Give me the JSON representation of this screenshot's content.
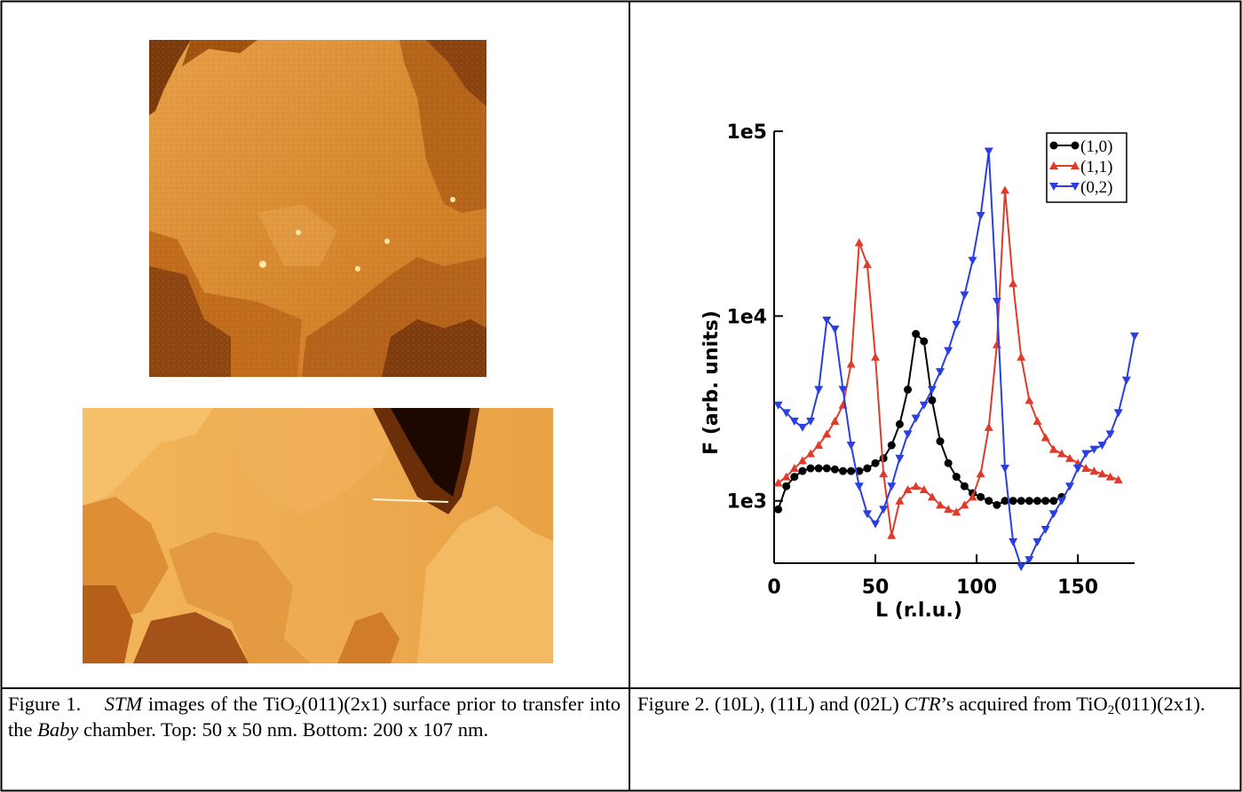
{
  "figure1_caption": [
    "Figure 1.",
    "STM",
    "images of the TiO",
    "2",
    "(011)(2x1) surface prior to transfer into the",
    "Baby",
    "chamber. Top: 50 x 50 nm. Bottom: 200 x 107 nm."
  ],
  "figure2_caption": [
    "Figure 2. (10L), (11L) and (02L)",
    "CTR",
    "’s acquired from TiO",
    "2",
    "(011)(2x1)."
  ],
  "chart_data": {
    "type": "line",
    "log_y": true,
    "xlabel": "L (r.l.u.)",
    "ylabel": "F (arb. units)",
    "xlim": [
      0,
      178
    ],
    "xticks": [
      0,
      50,
      100,
      150
    ],
    "ylim": [
      460,
      100000
    ],
    "yticks": [
      {
        "value": 1000,
        "label": "1e3"
      },
      {
        "value": 10000,
        "label": "1e4"
      },
      {
        "value": 100000,
        "label": "1e5"
      }
    ],
    "legend": "top-right",
    "series": [
      {
        "name": "(1,0)",
        "color": "#000000",
        "marker": "circle",
        "x": [
          2,
          6,
          10,
          14,
          18,
          22,
          26,
          30,
          34,
          38,
          42,
          46,
          50,
          54,
          58,
          62,
          66,
          70,
          74,
          78,
          82,
          86,
          90,
          94,
          98,
          102,
          106,
          110,
          114,
          118,
          122,
          126,
          130,
          134,
          138,
          142
        ],
        "values": [
          900,
          1200,
          1350,
          1450,
          1500,
          1500,
          1500,
          1480,
          1450,
          1450,
          1450,
          1500,
          1600,
          1700,
          2000,
          2600,
          4000,
          8000,
          7300,
          3500,
          2100,
          1600,
          1350,
          1200,
          1100,
          1050,
          1000,
          950,
          1000,
          1000,
          1000,
          1000,
          1000,
          1000,
          1000,
          1050
        ]
      },
      {
        "name": "(1,1)",
        "color": "#e03a2a",
        "marker": "triangle-up",
        "x": [
          2,
          6,
          10,
          14,
          18,
          22,
          26,
          30,
          34,
          38,
          42,
          46,
          50,
          54,
          58,
          62,
          66,
          70,
          74,
          78,
          82,
          86,
          90,
          94,
          98,
          102,
          106,
          110,
          114,
          118,
          122,
          126,
          130,
          134,
          138,
          142,
          146,
          150,
          154,
          158,
          162,
          166,
          170
        ],
        "values": [
          1250,
          1350,
          1500,
          1650,
          1800,
          2000,
          2300,
          2700,
          3300,
          5500,
          25000,
          19000,
          6000,
          1400,
          650,
          1000,
          1150,
          1200,
          1150,
          1050,
          950,
          900,
          870,
          950,
          1050,
          1400,
          2500,
          7000,
          48000,
          15000,
          6000,
          3500,
          2700,
          2200,
          1900,
          1800,
          1700,
          1600,
          1500,
          1450,
          1400,
          1350,
          1300
        ]
      },
      {
        "name": "(0,2)",
        "color": "#2a3fe0",
        "marker": "triangle-down",
        "x": [
          2,
          6,
          10,
          14,
          18,
          22,
          26,
          30,
          34,
          38,
          42,
          46,
          50,
          54,
          58,
          62,
          66,
          70,
          74,
          78,
          82,
          86,
          90,
          94,
          98,
          102,
          106,
          110,
          114,
          118,
          122,
          126,
          130,
          134,
          138,
          142,
          146,
          150,
          154,
          158,
          162,
          166,
          170,
          174,
          178
        ],
        "values": [
          3300,
          3000,
          2700,
          2500,
          2700,
          4000,
          9500,
          8500,
          4000,
          2000,
          1200,
          850,
          750,
          900,
          1200,
          1700,
          2300,
          2800,
          3300,
          4000,
          5000,
          6500,
          9000,
          13000,
          20000,
          35000,
          78000,
          12000,
          1500,
          600,
          440,
          480,
          600,
          700,
          850,
          1000,
          1200,
          1500,
          1800,
          1900,
          2000,
          2300,
          3000,
          4500,
          7800
        ]
      }
    ]
  }
}
